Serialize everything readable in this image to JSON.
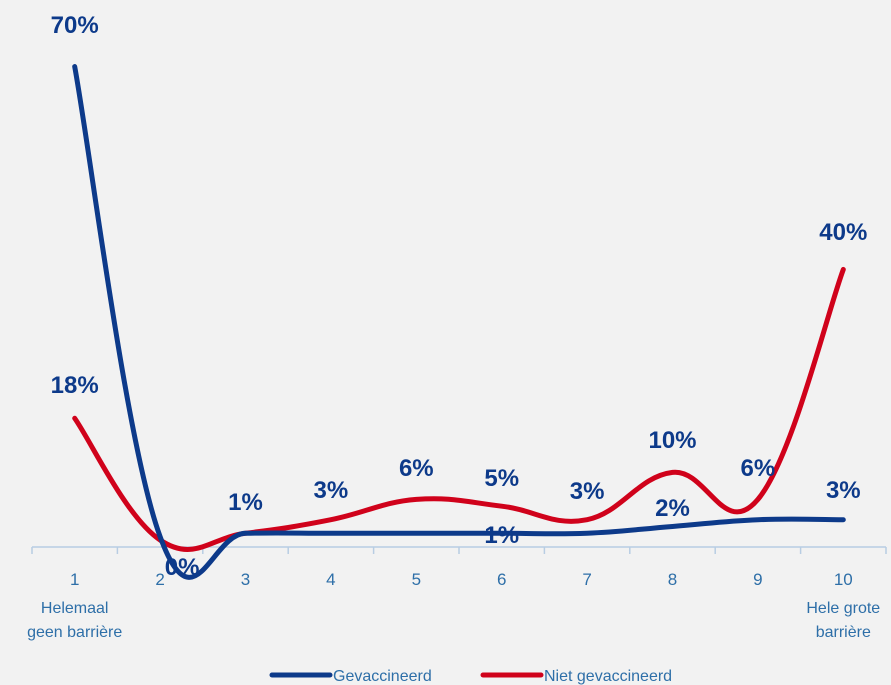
{
  "chart_data": {
    "type": "line",
    "categories": [
      "1",
      "2",
      "3",
      "4",
      "5",
      "6",
      "7",
      "8",
      "9",
      "10"
    ],
    "category_sublabels": {
      "first": [
        "Helemaal",
        "geen barrière"
      ],
      "last": [
        "Hele grote",
        "barrière"
      ]
    },
    "series": [
      {
        "name": "Gevaccineerd",
        "color": "#0d3a8a",
        "values": [
          70,
          0.5,
          1,
          1,
          1,
          1,
          1,
          2,
          3,
          3
        ],
        "labels": [
          "70%",
          "",
          "1%",
          "",
          "",
          "1%",
          "",
          "2%",
          "",
          "3%"
        ]
      },
      {
        "name": "Niet gevaccineerd",
        "color": "#d0021b",
        "values": [
          18,
          0,
          1,
          3,
          6,
          5,
          3,
          10,
          6,
          40
        ],
        "labels": [
          "18%",
          "0%",
          "",
          "3%",
          "6%",
          "5%",
          "3%",
          "10%",
          "6%",
          "40%"
        ]
      }
    ],
    "ylim": [
      0,
      72
    ],
    "grid": false,
    "legend_position": "bottom"
  }
}
